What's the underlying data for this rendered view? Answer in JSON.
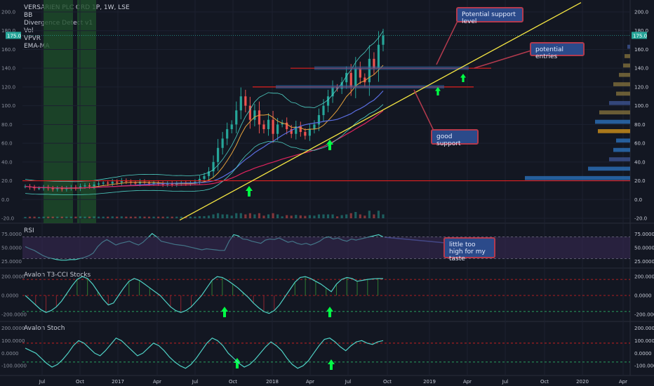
{
  "header": {
    "symbol": "VERSARIEN PLC ORD 1P, 1W, LSE",
    "indicators": [
      "BB",
      "Divergence Detect v1",
      "Vol",
      "VPVR",
      "EMA-MA"
    ]
  },
  "panes": {
    "rsi_title": "RSI",
    "t3_title": "Avalon T3-CCI Stocks",
    "stoch_title": "Avalon Stoch"
  },
  "callouts": {
    "support_level": "Potential support level",
    "entries": "potential entries",
    "good_support": "good support",
    "rsi_note": "little too high for my taste"
  },
  "colors": {
    "background": "#131722",
    "up_candle": "#26a69a",
    "down_candle": "#ef5350",
    "trendline": "#f5e642",
    "horizontal_line": "#e02020",
    "arrow": "#00ff44",
    "rsi_line": "#4fd1c5"
  },
  "chart_data": [
    {
      "type": "candlestick",
      "price_axis_ticks": [
        "200.0",
        "180.0",
        "160.0",
        "140.0",
        "120.0",
        "100.0",
        "80.0",
        "60.0",
        "40.0",
        "20.0",
        "0.0",
        "-20.0"
      ],
      "ylim": [
        -20,
        200
      ],
      "last_price": "175.0",
      "time_axis_ticks": [
        "Jul",
        "Oct",
        "2017",
        "Apr",
        "Jul",
        "Oct",
        "2018",
        "Apr",
        "Jul",
        "Oct",
        "2019",
        "Apr",
        "Jul",
        "Oct",
        "2020",
        "Apr"
      ],
      "horizontal_levels": [
        20,
        120,
        140
      ],
      "trendline": {
        "from": [
          2017.4,
          -22
        ],
        "to": [
          2020.0,
          210
        ]
      },
      "close_series": [
        14,
        13,
        12,
        12,
        13,
        12,
        11,
        12,
        11,
        12,
        13,
        12,
        14,
        15,
        14,
        16,
        17,
        18,
        17,
        19,
        18,
        20,
        19,
        18,
        17,
        19,
        18,
        17,
        18,
        17,
        16,
        17,
        16,
        17,
        18,
        17,
        18,
        19,
        22,
        25,
        30,
        40,
        55,
        65,
        75,
        80,
        95,
        110,
        100,
        85,
        95,
        80,
        75,
        85,
        70,
        80,
        82,
        75,
        70,
        78,
        72,
        68,
        75,
        80,
        90,
        100,
        110,
        120,
        118,
        125,
        135,
        120,
        140,
        130,
        125,
        150,
        140,
        165,
        175
      ]
    },
    {
      "type": "line",
      "title": "RSI",
      "ticks": [
        "75.0000",
        "50.0000",
        "25.0000"
      ],
      "ylim": [
        15,
        90
      ],
      "values": [
        52,
        48,
        45,
        40,
        35,
        32,
        30,
        28,
        27,
        27,
        28,
        28,
        30,
        32,
        35,
        40,
        52,
        60,
        65,
        60,
        55,
        58,
        60,
        62,
        58,
        55,
        60,
        68,
        76,
        70,
        62,
        60,
        58,
        56,
        55,
        54,
        52,
        50,
        48,
        46,
        48,
        47,
        46,
        45,
        45,
        62,
        74,
        72,
        66,
        65,
        62,
        60,
        58,
        64,
        66,
        65,
        68,
        64,
        60,
        62,
        58,
        56,
        58,
        55,
        58,
        62,
        68,
        70,
        66,
        68,
        64,
        62,
        66,
        64,
        66,
        68,
        70,
        72,
        74,
        70
      ]
    },
    {
      "type": "line",
      "title": "Avalon T3-CCI Stocks",
      "ticks": [
        "200.0000",
        "0.0000",
        "-200.0000"
      ],
      "ylim": [
        -260,
        260
      ],
      "values": [
        0,
        -50,
        -100,
        -150,
        -180,
        -160,
        -120,
        -60,
        20,
        100,
        170,
        200,
        180,
        120,
        40,
        -40,
        -100,
        -80,
        0,
        80,
        150,
        180,
        160,
        120,
        80,
        40,
        0,
        -60,
        -120,
        -160,
        -180,
        -160,
        -120,
        -60,
        0,
        80,
        160,
        200,
        190,
        160,
        120,
        80,
        30,
        -20,
        -80,
        -130,
        -170,
        -190,
        -160,
        -100,
        -20,
        60,
        140,
        190,
        200,
        180,
        150,
        120,
        80,
        40,
        120,
        170,
        190,
        180,
        150,
        160,
        170,
        175,
        180,
        178
      ]
    },
    {
      "type": "line",
      "title": "Avalon Stoch",
      "ticks": [
        "200.0000",
        "100.0000",
        "0.0000",
        "-100.0000"
      ],
      "ylim": [
        -160,
        230
      ],
      "values": [
        40,
        20,
        0,
        -40,
        -80,
        -110,
        -90,
        -50,
        0,
        60,
        100,
        80,
        40,
        0,
        -20,
        20,
        70,
        120,
        100,
        60,
        20,
        -20,
        0,
        40,
        80,
        60,
        20,
        -30,
        -70,
        -100,
        -120,
        -90,
        -40,
        20,
        80,
        120,
        100,
        60,
        0,
        -40,
        -80,
        -110,
        -90,
        -50,
        0,
        50,
        90,
        60,
        20,
        -40,
        -90,
        -120,
        -100,
        -60,
        0,
        60,
        110,
        120,
        90,
        50,
        20,
        60,
        90,
        100,
        80,
        70,
        90,
        100
      ]
    }
  ]
}
